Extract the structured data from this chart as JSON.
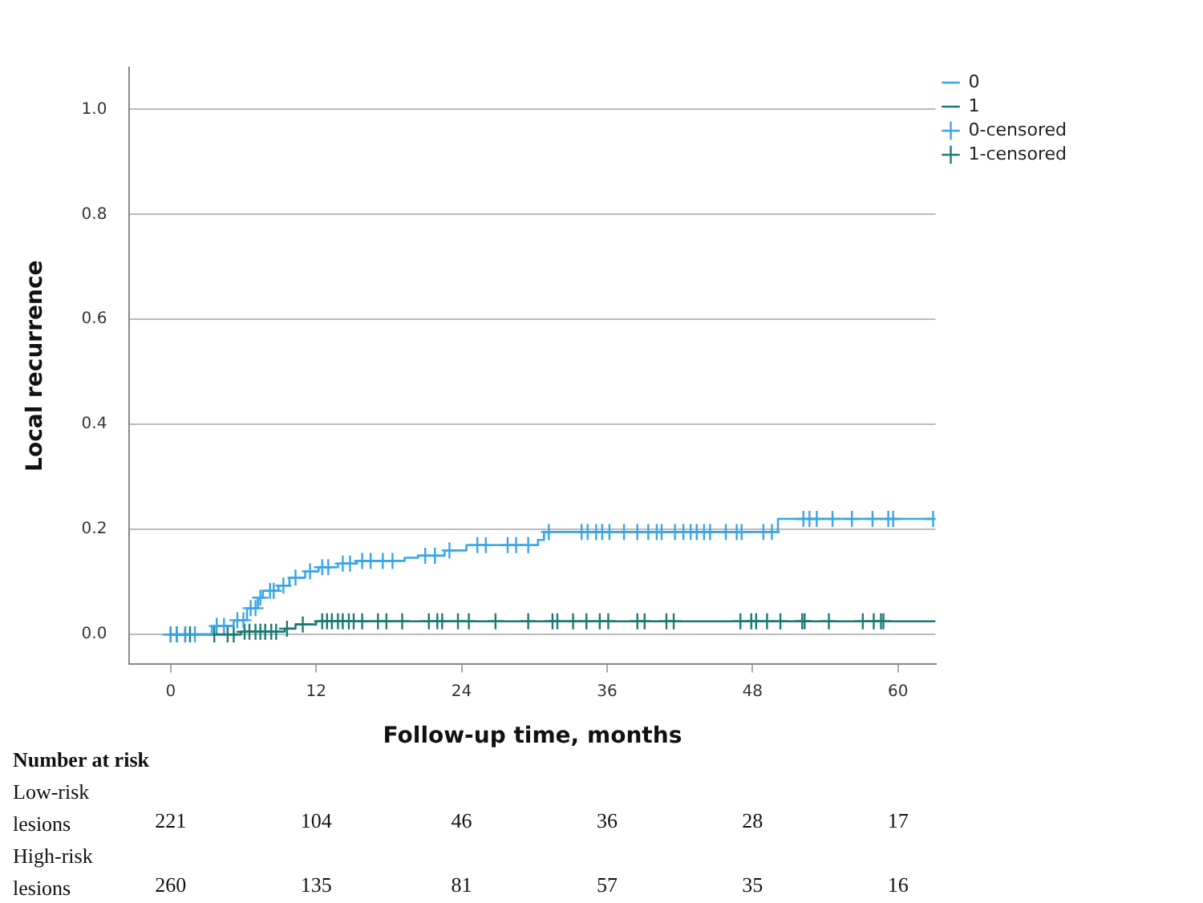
{
  "chart_data": {
    "type": "step",
    "xlabel": "Follow-up time, months",
    "ylabel": "Local recurrence",
    "xlim": [
      -3.4,
      63.1
    ],
    "xticks": [
      0,
      12,
      24,
      36,
      48,
      60
    ],
    "ylim": [
      -0.057,
      1.08
    ],
    "yticks": [
      {
        "value": 0,
        "label": "0.0"
      },
      {
        "value": 0.2,
        "label": "0.2"
      },
      {
        "value": 0.4,
        "label": "0.4"
      },
      {
        "value": 0.6,
        "label": "0.6"
      },
      {
        "value": 0.8,
        "label": "0.8"
      },
      {
        "value": 1,
        "label": "1.0"
      }
    ],
    "grid": "y",
    "legend": "top right",
    "series": [
      {
        "name": "0",
        "color": "#3aa5e6",
        "marker": "none",
        "x": [
          0,
          3.4,
          5.2,
          6.3,
          7.2,
          7.6,
          8.9,
          9.8,
          11.1,
          12.2,
          13.8,
          15.3,
          19.3,
          20.4,
          22.6,
          24.4,
          30.3,
          30.8,
          50.1,
          63.1
        ],
        "values": [
          0,
          0.016,
          0.027,
          0.05,
          0.07,
          0.083,
          0.093,
          0.108,
          0.12,
          0.128,
          0.135,
          0.14,
          0.146,
          0.15,
          0.16,
          0.17,
          0.18,
          0.195,
          0.22,
          0.22
        ]
      },
      {
        "name": "1",
        "color": "#1b7a73",
        "marker": "none",
        "x": [
          0,
          5.8,
          9.4,
          10.3,
          12.0,
          63.1
        ],
        "values": [
          0,
          0.005,
          0.011,
          0.019,
          0.025,
          0.025
        ]
      },
      {
        "name": "0-censored",
        "type": "scatter",
        "color": "#3aa5e6",
        "marker": "cross",
        "x": [
          0,
          0.5,
          1.2,
          2,
          3.8,
          4.4,
          5.5,
          6,
          6.6,
          7,
          7.4,
          8.2,
          8.5,
          9.3,
          10.3,
          11.5,
          12.5,
          13,
          14.2,
          14.8,
          15.8,
          16.5,
          17.5,
          18.3,
          21,
          21.8,
          23,
          25.3,
          26,
          27.8,
          28.5,
          29.5,
          31.2,
          33.9,
          34.4,
          35.1,
          35.6,
          36.2,
          37.4,
          38.5,
          39.4,
          40.1,
          40.5,
          41.6,
          42.3,
          42.9,
          43.4,
          44,
          44.5,
          45.8,
          46.7,
          47.1,
          48.9,
          49.6,
          52.2,
          52.7,
          53.3,
          54.6,
          56.2,
          57.9,
          59.2,
          59.6,
          62.9
        ],
        "values": [
          0,
          0,
          0,
          0,
          0.016,
          0.016,
          0.027,
          0.027,
          0.05,
          0.05,
          0.07,
          0.083,
          0.083,
          0.093,
          0.108,
          0.12,
          0.128,
          0.128,
          0.135,
          0.135,
          0.14,
          0.14,
          0.14,
          0.14,
          0.15,
          0.15,
          0.16,
          0.17,
          0.17,
          0.17,
          0.17,
          0.17,
          0.195,
          0.195,
          0.195,
          0.195,
          0.195,
          0.195,
          0.195,
          0.195,
          0.195,
          0.195,
          0.195,
          0.195,
          0.195,
          0.195,
          0.195,
          0.195,
          0.195,
          0.195,
          0.195,
          0.195,
          0.195,
          0.195,
          0.22,
          0.22,
          0.22,
          0.22,
          0.22,
          0.22,
          0.22,
          0.22,
          0.22
        ]
      },
      {
        "name": "1-censored",
        "type": "scatter",
        "color": "#1b7a73",
        "marker": "cross",
        "x": [
          0,
          0.5,
          1.2,
          1.6,
          3.6,
          4.7,
          5.2,
          6.1,
          6.5,
          7,
          7.4,
          7.8,
          8.3,
          8.7,
          9.6,
          10.9,
          12.5,
          12.9,
          13.3,
          13.8,
          14.2,
          14.7,
          15.1,
          15.8,
          17.1,
          17.8,
          19.1,
          21.3,
          22,
          22.4,
          23.7,
          24.6,
          26.8,
          29.5,
          31.5,
          31.9,
          33.2,
          34.3,
          35.4,
          36.1,
          38.5,
          39.1,
          40.9,
          41.5,
          47,
          47.9,
          48.3,
          49.2,
          50.3,
          52.1,
          52.3,
          54.3,
          57.1,
          58,
          58.6,
          58.8
        ],
        "values": [
          0,
          0,
          0,
          0,
          0,
          0,
          0,
          0.005,
          0.005,
          0.005,
          0.005,
          0.005,
          0.005,
          0.005,
          0.011,
          0.019,
          0.025,
          0.025,
          0.025,
          0.025,
          0.025,
          0.025,
          0.025,
          0.025,
          0.025,
          0.025,
          0.025,
          0.025,
          0.025,
          0.025,
          0.025,
          0.025,
          0.025,
          0.025,
          0.025,
          0.025,
          0.025,
          0.025,
          0.025,
          0.025,
          0.025,
          0.025,
          0.025,
          0.025,
          0.025,
          0.025,
          0.025,
          0.025,
          0.025,
          0.025,
          0.025,
          0.025,
          0.025,
          0.025,
          0.025,
          0.025
        ]
      }
    ],
    "annotations": [
      "Number at risk",
      "Low-risk lesions",
      "221",
      "104",
      "46",
      "36",
      "28",
      "17",
      "High-risk lesions",
      "260",
      "135",
      "81",
      "57",
      "35",
      "16"
    ]
  }
}
